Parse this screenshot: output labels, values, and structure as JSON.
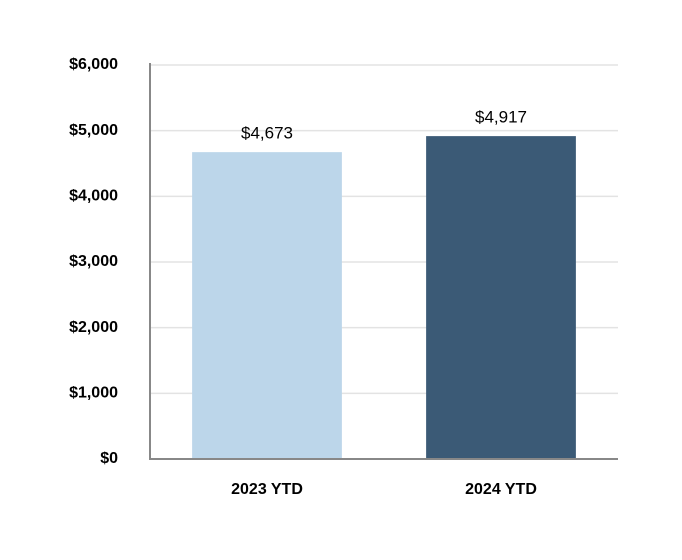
{
  "chart_data": {
    "type": "bar",
    "categories": [
      "2023 YTD",
      "2024 YTD"
    ],
    "values": [
      4673,
      4917
    ],
    "value_labels": [
      "$4,673",
      "$4,917"
    ],
    "colors": [
      "#bcd6ea",
      "#3b5a76"
    ],
    "ylim": [
      0,
      6000
    ],
    "yticks": [
      {
        "value": 0,
        "label": "$0"
      },
      {
        "value": 1000,
        "label": "$1,000"
      },
      {
        "value": 2000,
        "label": "$2,000"
      },
      {
        "value": 3000,
        "label": "$3,000"
      },
      {
        "value": 4000,
        "label": "$4,000"
      },
      {
        "value": 5000,
        "label": "$5,000"
      },
      {
        "value": 6000,
        "label": "$6,000"
      }
    ],
    "grid": true
  }
}
